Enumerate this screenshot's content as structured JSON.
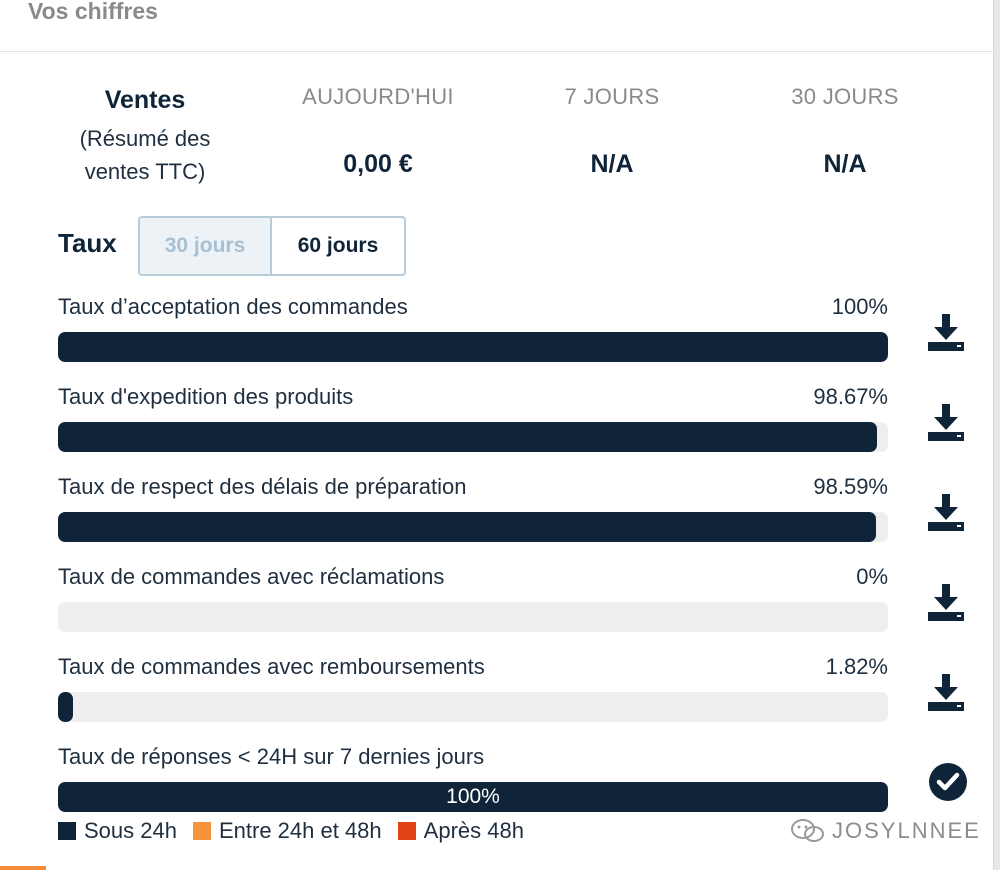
{
  "header": {
    "title": "Vos chiffres"
  },
  "sales": {
    "title": "Ventes",
    "subtitle_line1": "(Résumé des",
    "subtitle_line2": "ventes TTC)",
    "periods": [
      {
        "label": "AUJOURD'HUI",
        "value": "0,00 €"
      },
      {
        "label": "7 JOURS",
        "value": "N/A"
      },
      {
        "label": "30 JOURS",
        "value": "N/A"
      }
    ]
  },
  "rates": {
    "title": "Taux",
    "tabs": [
      {
        "label": "30 jours",
        "active": false
      },
      {
        "label": "60 jours",
        "active": true
      }
    ],
    "metrics": [
      {
        "label": "Taux d’acceptation des commandes",
        "value_text": "100%",
        "value": 100,
        "icon": "download-icon"
      },
      {
        "label": "Taux d'expedition des produits",
        "value_text": "98.67%",
        "value": 98.67,
        "icon": "download-icon"
      },
      {
        "label": "Taux de respect des délais de préparation",
        "value_text": "98.59%",
        "value": 98.59,
        "icon": "download-icon"
      },
      {
        "label": "Taux de commandes avec réclamations",
        "value_text": "0%",
        "value": 0,
        "icon": "download-icon"
      },
      {
        "label": "Taux de commandes avec remboursements",
        "value_text": "1.82%",
        "value": 1.82,
        "icon": "download-icon"
      }
    ],
    "response": {
      "label": "Taux de réponses < 24H sur 7 dernies jours",
      "bar_text": "100%",
      "value": 100,
      "icon": "check-circle-icon"
    },
    "legend": [
      {
        "label": "Sous 24h",
        "color": "#0f2438"
      },
      {
        "label": "Entre 24h et 48h",
        "color": "#f7943b"
      },
      {
        "label": "Après 48h",
        "color": "#e04416"
      }
    ]
  },
  "watermark": {
    "text": "JOSYLNNEE"
  },
  "colors": {
    "bar": "#0f2438",
    "track": "#eeeeee",
    "accent": "#f28c38"
  }
}
